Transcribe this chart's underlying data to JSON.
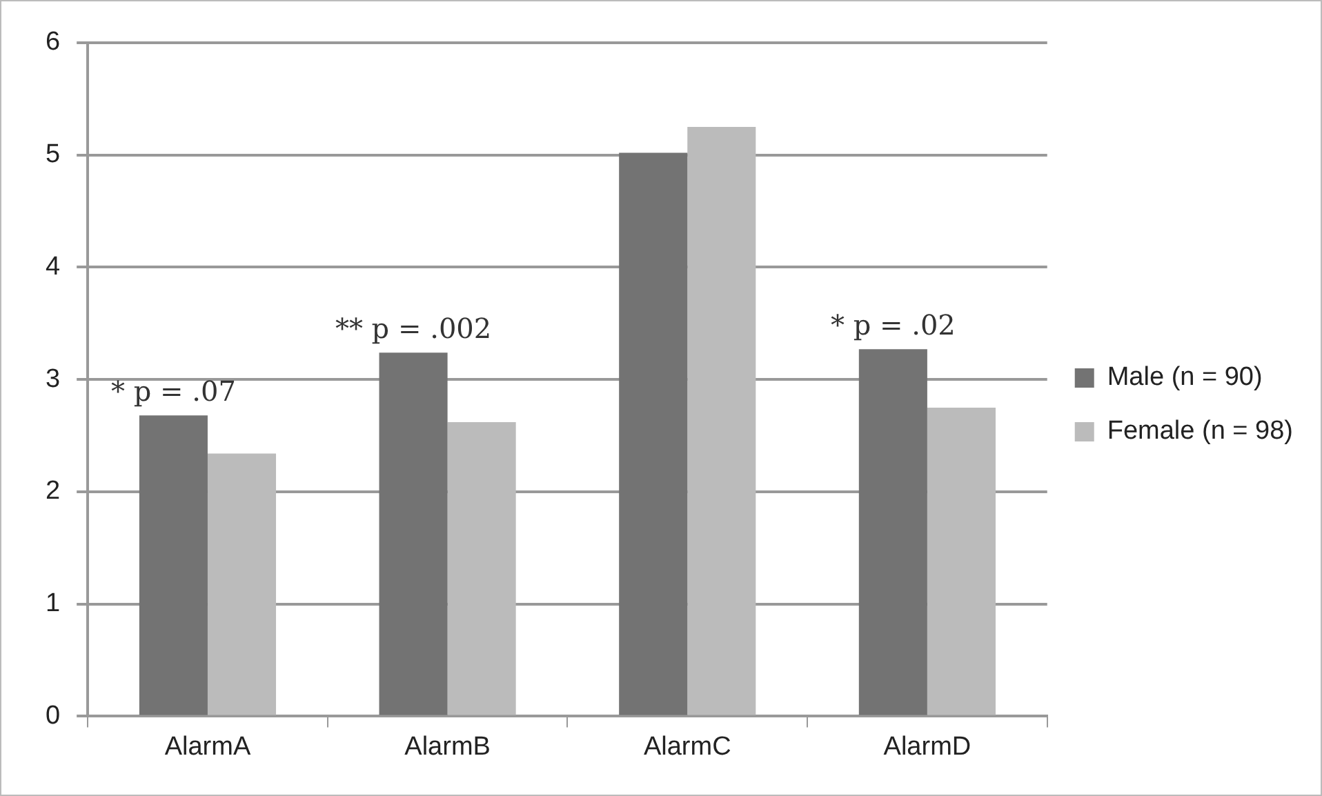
{
  "chart_data": {
    "type": "bar",
    "categories": [
      "AlarmA",
      "AlarmB",
      "AlarmC",
      "AlarmD"
    ],
    "series": [
      {
        "name": "Male (n = 90)",
        "color": "#737373",
        "values": [
          2.68,
          3.24,
          5.02,
          3.27
        ]
      },
      {
        "name": "Female (n = 98)",
        "color": "#bbbbbb",
        "values": [
          2.34,
          2.62,
          5.25,
          2.75
        ]
      }
    ],
    "ylim": [
      0,
      6
    ],
    "yticks": [
      0,
      1,
      2,
      3,
      4,
      5,
      6
    ],
    "grid": "y",
    "legend": "right",
    "annotations": [
      {
        "text": "* p = .07",
        "x": "AlarmA",
        "y": 2.68
      },
      {
        "text": "** p = .002",
        "x": "AlarmB",
        "y": 3.24
      },
      {
        "text": "* p = .02",
        "x": "AlarmD",
        "y": 3.27
      }
    ]
  }
}
